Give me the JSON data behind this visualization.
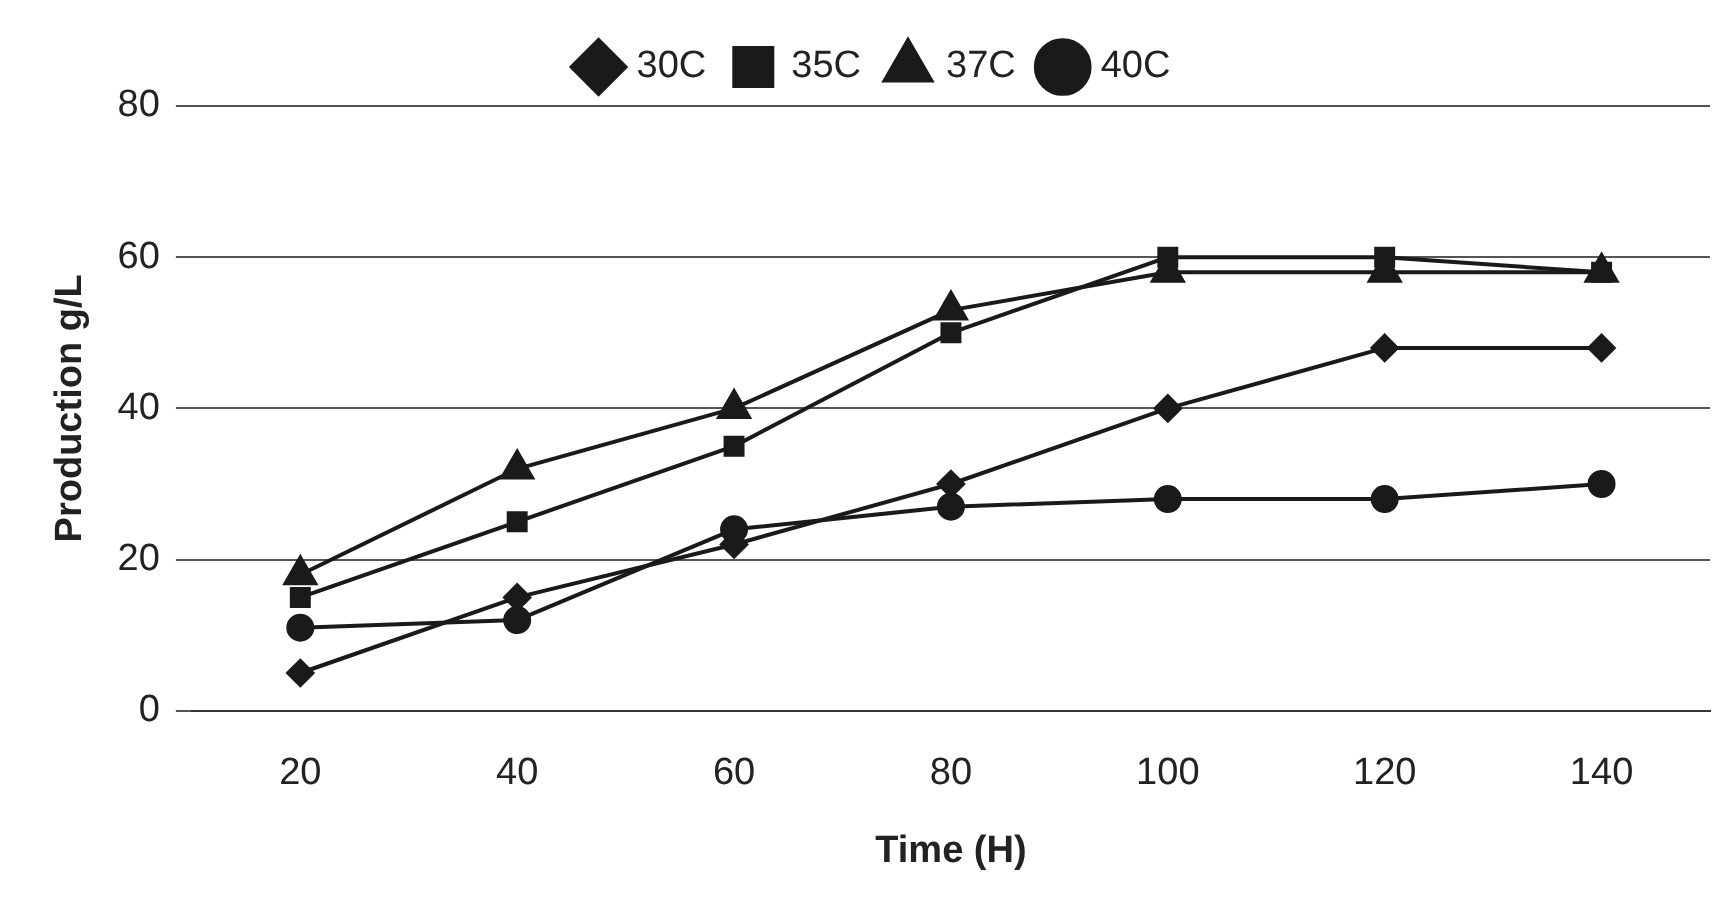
{
  "chart_data": {
    "type": "line",
    "xlabel": "Time (H)",
    "ylabel": "Production g/L",
    "categories": [
      "20",
      "40",
      "60",
      "80",
      "100",
      "120",
      "140"
    ],
    "ylim": [
      0,
      80
    ],
    "yticks": [
      0,
      20,
      40,
      60,
      80
    ],
    "grid": "y",
    "legend": "top",
    "line_style": "solid",
    "series": [
      {
        "name": "30C",
        "color": "#1a1a1a",
        "marker": "diamond",
        "values": [
          5,
          15,
          22,
          30,
          40,
          48,
          48
        ]
      },
      {
        "name": "35C",
        "color": "#1a1a1a",
        "marker": "square",
        "values": [
          15,
          25,
          35,
          50,
          60,
          60,
          58
        ]
      },
      {
        "name": "37C",
        "color": "#1a1a1a",
        "marker": "triangle",
        "values": [
          18,
          32,
          40,
          53,
          58,
          58,
          58
        ]
      },
      {
        "name": "40C",
        "color": "#1a1a1a",
        "marker": "circle",
        "values": [
          11,
          12,
          24,
          27,
          28,
          28,
          30
        ]
      }
    ]
  }
}
